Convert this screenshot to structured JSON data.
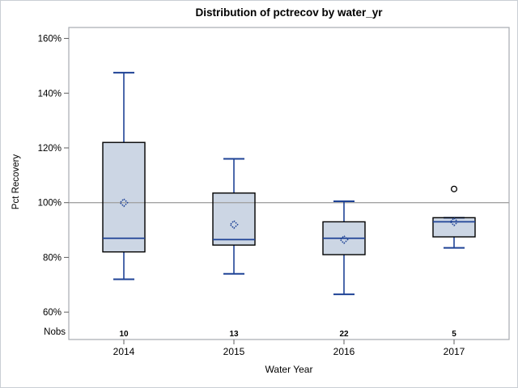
{
  "chart_data": {
    "type": "boxplot",
    "title": "Distribution of pctrecov by water_yr",
    "xlabel": "Water Year",
    "ylabel": "Pct Recovery",
    "nobs_label": "Nobs",
    "categories": [
      "2014",
      "2015",
      "2016",
      "2017"
    ],
    "nobs": [
      10,
      13,
      22,
      5
    ],
    "y_ticks": [
      60,
      80,
      100,
      120,
      140,
      160
    ],
    "y_tick_suffix": "%",
    "ylim": [
      50,
      164
    ],
    "reference_line": 100,
    "grid": false,
    "legend": null,
    "series": [
      {
        "category": "2014",
        "n": 10,
        "min": 72,
        "q1": 82,
        "median": 87,
        "q3": 122,
        "max": 147.5,
        "mean": 100,
        "outliers": []
      },
      {
        "category": "2015",
        "n": 13,
        "min": 74,
        "q1": 84.5,
        "median": 86.5,
        "q3": 103.5,
        "max": 116,
        "mean": 92,
        "outliers": []
      },
      {
        "category": "2016",
        "n": 22,
        "min": 66.5,
        "q1": 81,
        "median": 87,
        "q3": 93,
        "max": 100.5,
        "mean": 86.5,
        "outliers": []
      },
      {
        "category": "2017",
        "n": 5,
        "min": 83.5,
        "q1": 87.5,
        "median": 93,
        "q3": 94.5,
        "max": 94.5,
        "mean": 93,
        "outliers": [
          105
        ]
      }
    ],
    "colors": {
      "box_fill": "#ccd6e4",
      "box_border": "#000000",
      "whisker": "#1f4396",
      "median": "#1f4396",
      "mean_marker": "#1f4396",
      "outlier": "#000000",
      "reference_line": "#a3a3a3",
      "axis": "#a7abb0",
      "tick": "#5f5f5f",
      "text": "#000000"
    }
  }
}
